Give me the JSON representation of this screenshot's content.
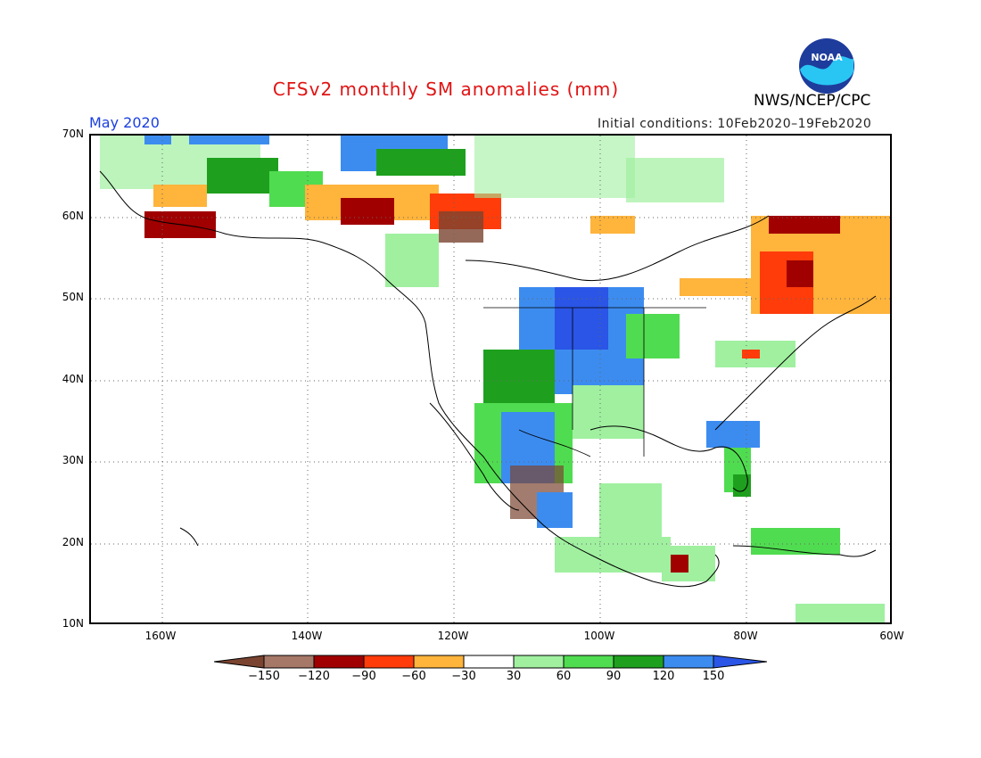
{
  "title": "CFSv2 monthly SM anomalies (mm)",
  "organization": "NWS/NCEP/CPC",
  "valid_month": "May 2020",
  "initial_conditions": "Initial conditions: 10Feb2020–19Feb2020",
  "logo_text": "NOAA",
  "axes": {
    "lat_labels": [
      "70N",
      "60N",
      "50N",
      "40N",
      "30N",
      "20N",
      "10N"
    ],
    "lon_labels": [
      "160W",
      "140W",
      "120W",
      "100W",
      "80W",
      "60W"
    ]
  },
  "colorbar": {
    "labels": [
      "−150",
      "−120",
      "−90",
      "−60",
      "−30",
      "30",
      "60",
      "90",
      "120",
      "150"
    ],
    "colors": [
      "#7a4430",
      "#a57868",
      "#a00000",
      "#ff3c0a",
      "#ffb43c",
      "#ffffff",
      "#a0f0a0",
      "#50dc50",
      "#1ea01e",
      "#3c8cf0",
      "#2a55e6"
    ]
  }
}
